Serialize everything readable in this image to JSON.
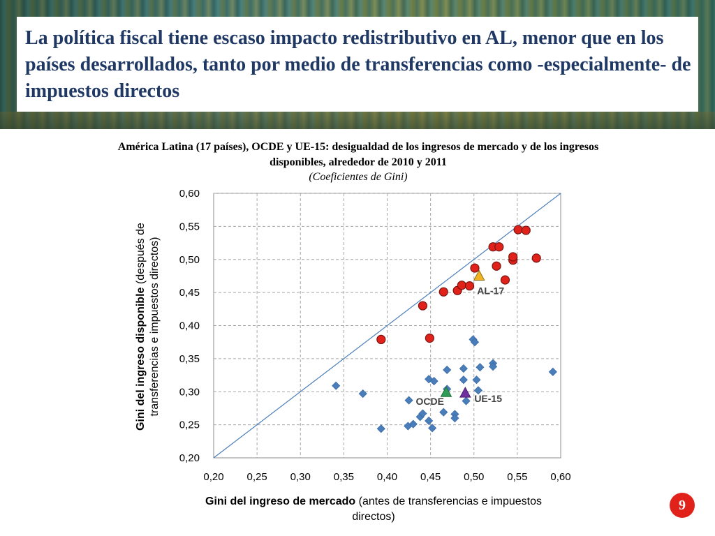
{
  "slide": {
    "title": "La política fiscal tiene escaso impacto redistributivo en AL, menor que en los países desarrollados, tanto por medio de transferencias como -especialmente- de impuestos directos",
    "page_number": "9"
  },
  "colors": {
    "title": "#1f3864",
    "latam": "#e0221a",
    "ocde": "#4a7ebb",
    "al17": "#f0b323",
    "ocde_avg": "#2e9e57",
    "ue15": "#7030a0",
    "line": "#4a7ebb",
    "badge": "#e0221a"
  },
  "chart_data": {
    "type": "scatter",
    "title": "América Latina (17 países), OCDE y UE-15: desigualdad de los ingresos de mercado y de los ingresos disponibles, alrededor de 2010 y 2011",
    "subtitle": "(Coeficientes de Gini)",
    "xlabel_bold": "Gini del ingreso de mercado",
    "xlabel_rest": " (antes de transferencias e impuestos directos)",
    "ylabel_bold": "Gini del ingreso disponible",
    "ylabel_rest": " (después de transferencias e  impuestos directos)",
    "xlim": [
      0.2,
      0.6
    ],
    "ylim": [
      0.2,
      0.6
    ],
    "xticks": [
      "0,20",
      "0,25",
      "0,30",
      "0,35",
      "0,40",
      "0,45",
      "0,50",
      "0,55",
      "0,60"
    ],
    "yticks": [
      "0,20",
      "0,25",
      "0,30",
      "0,35",
      "0,40",
      "0,45",
      "0,50",
      "0,55",
      "0,60"
    ],
    "grid": true,
    "reference_line": [
      [
        0.2,
        0.2
      ],
      [
        0.6,
        0.6
      ]
    ],
    "series": [
      {
        "marker": "circle",
        "points": [
          [
            0.393,
            0.379
          ],
          [
            0.441,
            0.43
          ],
          [
            0.449,
            0.381
          ],
          [
            0.465,
            0.451
          ],
          [
            0.481,
            0.453
          ],
          [
            0.486,
            0.461
          ],
          [
            0.495,
            0.46
          ],
          [
            0.501,
            0.487
          ],
          [
            0.522,
            0.519
          ],
          [
            0.529,
            0.519
          ],
          [
            0.526,
            0.49
          ],
          [
            0.536,
            0.469
          ],
          [
            0.545,
            0.499
          ],
          [
            0.545,
            0.504
          ],
          [
            0.551,
            0.545
          ],
          [
            0.56,
            0.544
          ],
          [
            0.572,
            0.502
          ]
        ]
      },
      {
        "marker": "diamond",
        "points": [
          [
            0.341,
            0.309
          ],
          [
            0.372,
            0.297
          ],
          [
            0.393,
            0.244
          ],
          [
            0.424,
            0.248
          ],
          [
            0.425,
            0.287
          ],
          [
            0.43,
            0.251
          ],
          [
            0.438,
            0.262
          ],
          [
            0.441,
            0.267
          ],
          [
            0.448,
            0.319
          ],
          [
            0.448,
            0.256
          ],
          [
            0.452,
            0.245
          ],
          [
            0.454,
            0.316
          ],
          [
            0.465,
            0.269
          ],
          [
            0.469,
            0.333
          ],
          [
            0.469,
            0.304
          ],
          [
            0.478,
            0.266
          ],
          [
            0.478,
            0.26
          ],
          [
            0.488,
            0.335
          ],
          [
            0.488,
            0.318
          ],
          [
            0.491,
            0.286
          ],
          [
            0.499,
            0.379
          ],
          [
            0.501,
            0.375
          ],
          [
            0.503,
            0.318
          ],
          [
            0.505,
            0.302
          ],
          [
            0.507,
            0.337
          ],
          [
            0.522,
            0.343
          ],
          [
            0.522,
            0.338
          ],
          [
            0.591,
            0.33
          ]
        ]
      },
      {
        "label": "AL-17",
        "marker": "triangle",
        "points": [
          [
            0.506,
            0.475
          ]
        ]
      },
      {
        "label": "OCDE",
        "marker": "triangle",
        "points": [
          [
            0.468,
            0.299
          ]
        ]
      },
      {
        "label": "UE-15",
        "marker": "triangle",
        "points": [
          [
            0.49,
            0.298
          ]
        ]
      }
    ]
  }
}
